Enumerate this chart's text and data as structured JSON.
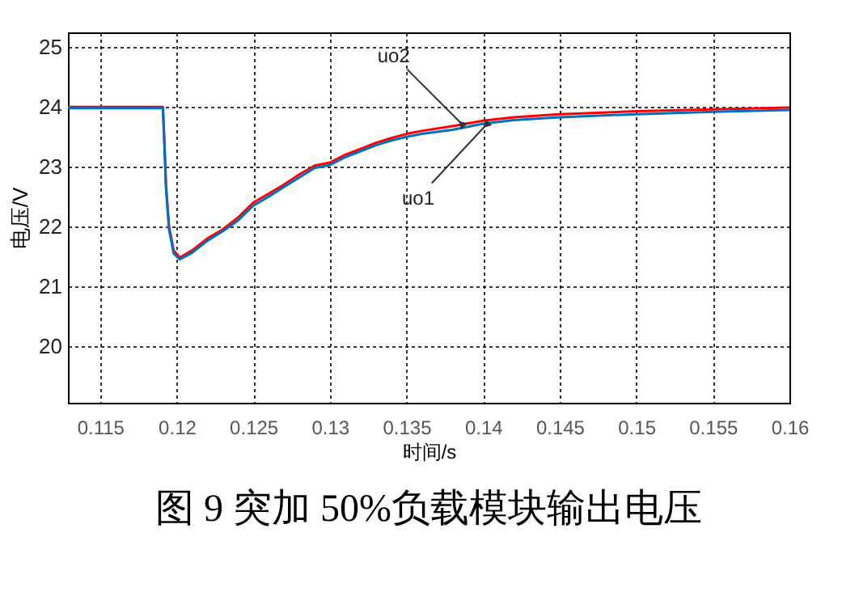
{
  "chart_data": {
    "type": "line",
    "title": "图 9  突加 50%负载模块输出电压",
    "xlabel": "时间/s",
    "ylabel": "电压/V",
    "xlim": [
      0.1129,
      0.16
    ],
    "xticks": [
      0.115,
      0.12,
      0.125,
      0.13,
      0.135,
      0.14,
      0.145,
      0.15,
      0.155,
      0.16
    ],
    "ylim": [
      19.05,
      25.25
    ],
    "yticks": [
      20,
      21,
      22,
      23,
      24,
      25
    ],
    "grid": true,
    "legend": false,
    "x": [
      0.1129,
      0.1191,
      0.1192,
      0.1193,
      0.1195,
      0.1198,
      0.1202,
      0.121,
      0.122,
      0.123,
      0.124,
      0.125,
      0.126,
      0.127,
      0.128,
      0.129,
      0.13,
      0.131,
      0.132,
      0.133,
      0.134,
      0.135,
      0.136,
      0.138,
      0.14,
      0.142,
      0.145,
      0.15,
      0.155,
      0.16
    ],
    "series": [
      {
        "color": "#ff0000",
        "values": [
          24.0,
          24.0,
          23.4,
          22.7,
          22.0,
          21.6,
          21.48,
          21.6,
          21.8,
          21.95,
          22.15,
          22.4,
          22.55,
          22.7,
          22.87,
          23.02,
          23.07,
          23.2,
          23.3,
          23.4,
          23.48,
          23.55,
          23.6,
          23.68,
          23.77,
          23.83,
          23.88,
          23.93,
          23.96,
          23.99
        ]
      },
      {
        "color": "#0070c0",
        "values": [
          23.98,
          23.98,
          23.35,
          22.65,
          21.95,
          21.55,
          21.45,
          21.56,
          21.76,
          21.92,
          22.1,
          22.35,
          22.5,
          22.66,
          22.82,
          22.98,
          23.03,
          23.16,
          23.26,
          23.36,
          23.44,
          23.5,
          23.55,
          23.62,
          23.72,
          23.78,
          23.83,
          23.88,
          23.92,
          23.95
        ]
      }
    ],
    "annotations": [
      {
        "text": "uo2",
        "x": 0.1386,
        "y": 23.72
      },
      {
        "text": "uo1",
        "x": 0.1402,
        "y": 23.7
      }
    ]
  }
}
